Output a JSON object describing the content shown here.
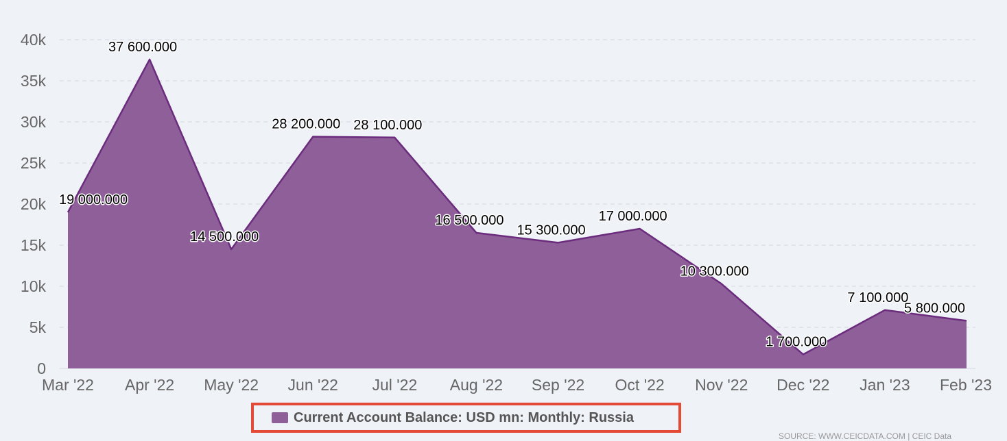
{
  "chart_data": {
    "type": "area",
    "categories": [
      "Mar '22",
      "Apr '22",
      "May '22",
      "Jun '22",
      "Jul '22",
      "Aug '22",
      "Sep '22",
      "Oct '22",
      "Nov '22",
      "Dec '22",
      "Jan '23",
      "Feb '23"
    ],
    "series": [
      {
        "name": "Current Account Balance: USD mn: Monthly: Russia",
        "values": [
          19000,
          37600,
          14500,
          28200,
          28100,
          16500,
          15300,
          17000,
          10300,
          1700,
          7100,
          5800
        ],
        "data_labels": [
          "19 000.000",
          "37 600.000",
          "14 500.000",
          "28 200.000",
          "28 100.000",
          "16 500.000",
          "15 300.000",
          "17 000.000",
          "10 300.000",
          "1 700.000",
          "7 100.000",
          "5 800.000"
        ]
      }
    ],
    "y_ticks": [
      0,
      5000,
      10000,
      15000,
      20000,
      25000,
      30000,
      35000,
      40000
    ],
    "y_tick_labels": [
      "0",
      "5k",
      "10k",
      "15k",
      "20k",
      "25k",
      "30k",
      "35k",
      "40k"
    ],
    "ylim": [
      0,
      40000
    ],
    "grid": true,
    "legend_position": "bottom-center",
    "colors": {
      "fill": "#8e5f98",
      "line": "#6b2c7d",
      "legend_border": "#e34b36"
    }
  },
  "legend": {
    "label": "Current Account Balance: USD mn: Monthly: Russia"
  },
  "source": "SOURCE: WWW.CEICDATA.COM | CEIC Data"
}
